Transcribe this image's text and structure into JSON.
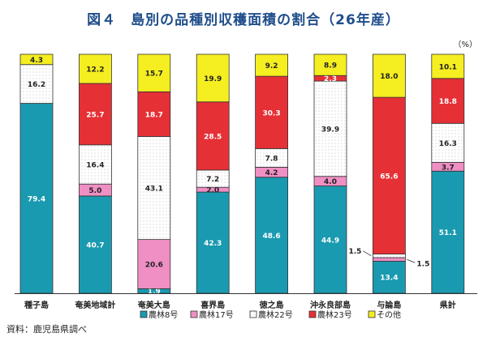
{
  "chart_data": {
    "type": "bar",
    "stacked": true,
    "percent": true,
    "title": "図４　島別の品種別収穫面積の割合（26年産）",
    "unit_label": "（%）",
    "categories": [
      "種子島",
      "奄美地域計",
      "奄美大島",
      "喜界島",
      "徳之島",
      "沖永良部島",
      "与論島",
      "県計"
    ],
    "series": [
      {
        "name": "農林8号",
        "color": "#1a9ab0",
        "values": [
          79.4,
          40.7,
          1.9,
          42.3,
          48.6,
          44.9,
          13.4,
          51.1
        ]
      },
      {
        "name": "農林17号",
        "color": "#ef8fc4",
        "values": [
          0,
          5.0,
          20.6,
          2.0,
          4.2,
          4.0,
          1.5,
          3.7
        ]
      },
      {
        "name": "農林22号",
        "color": "#ffffff",
        "values": [
          16.2,
          16.4,
          43.1,
          7.2,
          7.8,
          39.9,
          1.5,
          16.3
        ]
      },
      {
        "name": "農林23号",
        "color": "#e53036",
        "values": [
          0,
          25.7,
          18.7,
          28.5,
          30.3,
          2.3,
          65.6,
          18.8
        ]
      },
      {
        "name": "その他",
        "color": "#f5ee20",
        "values": [
          4.3,
          12.2,
          15.7,
          19.9,
          9.2,
          8.9,
          18.0,
          10.1
        ]
      }
    ],
    "labels": [
      [
        "79.4",
        "",
        "16.2",
        "",
        "4.3"
      ],
      [
        "40.7",
        "5.0",
        "16.4",
        "25.7",
        "12.2"
      ],
      [
        "1.9",
        "20.6",
        "43.1",
        "18.7",
        "15.7"
      ],
      [
        "42.3",
        "2.0",
        "7.2",
        "28.5",
        "19.9"
      ],
      [
        "48.6",
        "4.2",
        "7.8",
        "30.3",
        "9.2"
      ],
      [
        "44.9",
        "4.0",
        "39.9",
        "2.3",
        "8.9"
      ],
      [
        "13.4",
        "1.5",
        "1.5",
        "65.6",
        "18.0"
      ],
      [
        "51.1",
        "3.7",
        "16.3",
        "18.8",
        "10.1"
      ]
    ],
    "ylim": [
      0,
      100
    ],
    "legend_position": "bottom"
  },
  "source_note": "資料：鹿児島県調べ"
}
